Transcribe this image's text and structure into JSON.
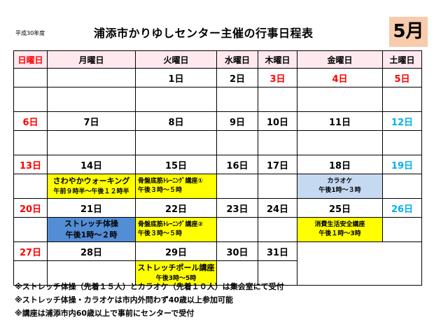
{
  "header": {
    "era_year": "平成30年度",
    "title": "浦添市かりゆしセンター主催の行事日程表",
    "month": "5月"
  },
  "weekdays": [
    "日曜日",
    "月曜日",
    "火曜日",
    "水曜日",
    "木曜日",
    "金曜日",
    "土曜日"
  ],
  "weeks": [
    {
      "days": [
        "",
        "",
        "1日",
        "2日",
        "3日",
        "4日",
        "5日"
      ],
      "events": [
        "",
        "",
        "",
        "",
        "",
        "",
        ""
      ]
    },
    {
      "days": [
        "6日",
        "7日",
        "8日",
        "9日",
        "10日",
        "11日",
        "12日"
      ],
      "events": [
        "",
        "",
        "",
        "",
        "",
        "",
        ""
      ]
    },
    {
      "days": [
        "13日",
        "14日",
        "15日",
        "16日",
        "17日",
        "18日",
        "19日"
      ],
      "events": [
        "",
        {
          "name": "さわやかウォーキング",
          "time": "午前９時半～午後１２時半",
          "color": "yellow"
        },
        {
          "name": "骨盤底筋ﾄﾚｰﾆﾝｸﾞ講座①",
          "time": "午後３時～５時",
          "color": "yellow"
        },
        "",
        "",
        {
          "name": "カラオケ",
          "time": "午後1時～３時",
          "color": "lblue"
        },
        ""
      ]
    },
    {
      "days": [
        "20日",
        "21日",
        "22日",
        "23日",
        "24日",
        "25日",
        "26日"
      ],
      "events": [
        "",
        {
          "name": "ストレッチ体操",
          "time": "午後1時～２時",
          "color": "mblue"
        },
        {
          "name": "骨盤底筋ﾄﾚｰﾆﾝｸﾞ講座②",
          "time": "午後３時～５時",
          "color": "yellow"
        },
        "",
        "",
        {
          "name": "消費生活安全講座",
          "time": "午後１時～3時",
          "color": "yellow"
        },
        ""
      ]
    },
    {
      "days": [
        "27日",
        "28日",
        "29日",
        "30日",
        "31日",
        "",
        ""
      ],
      "events": [
        "",
        "",
        {
          "name": "ストレッチポール講座",
          "time": "午後3時～5時",
          "color": "yellow"
        },
        "",
        "",
        "",
        ""
      ]
    }
  ],
  "notes": [
    "※ストレッチ体操（先着１５人）とカラオケ（先着１０人）は集会室にて受付",
    "※ストレッチ体操・カラオケは市内外問わず40歳以上参加可能",
    "※講座は浦添市内60歳以上で事前にセンターで受付"
  ],
  "colors": {
    "header_bg": "#ffe9ef",
    "month_bg": "#f8cbad",
    "sunday_holiday": "#ff0000",
    "saturday": "#00b0f0",
    "event_yellow": "#ffff00",
    "event_light_blue": "#c5d9f1",
    "event_blue": "#538dd5"
  }
}
